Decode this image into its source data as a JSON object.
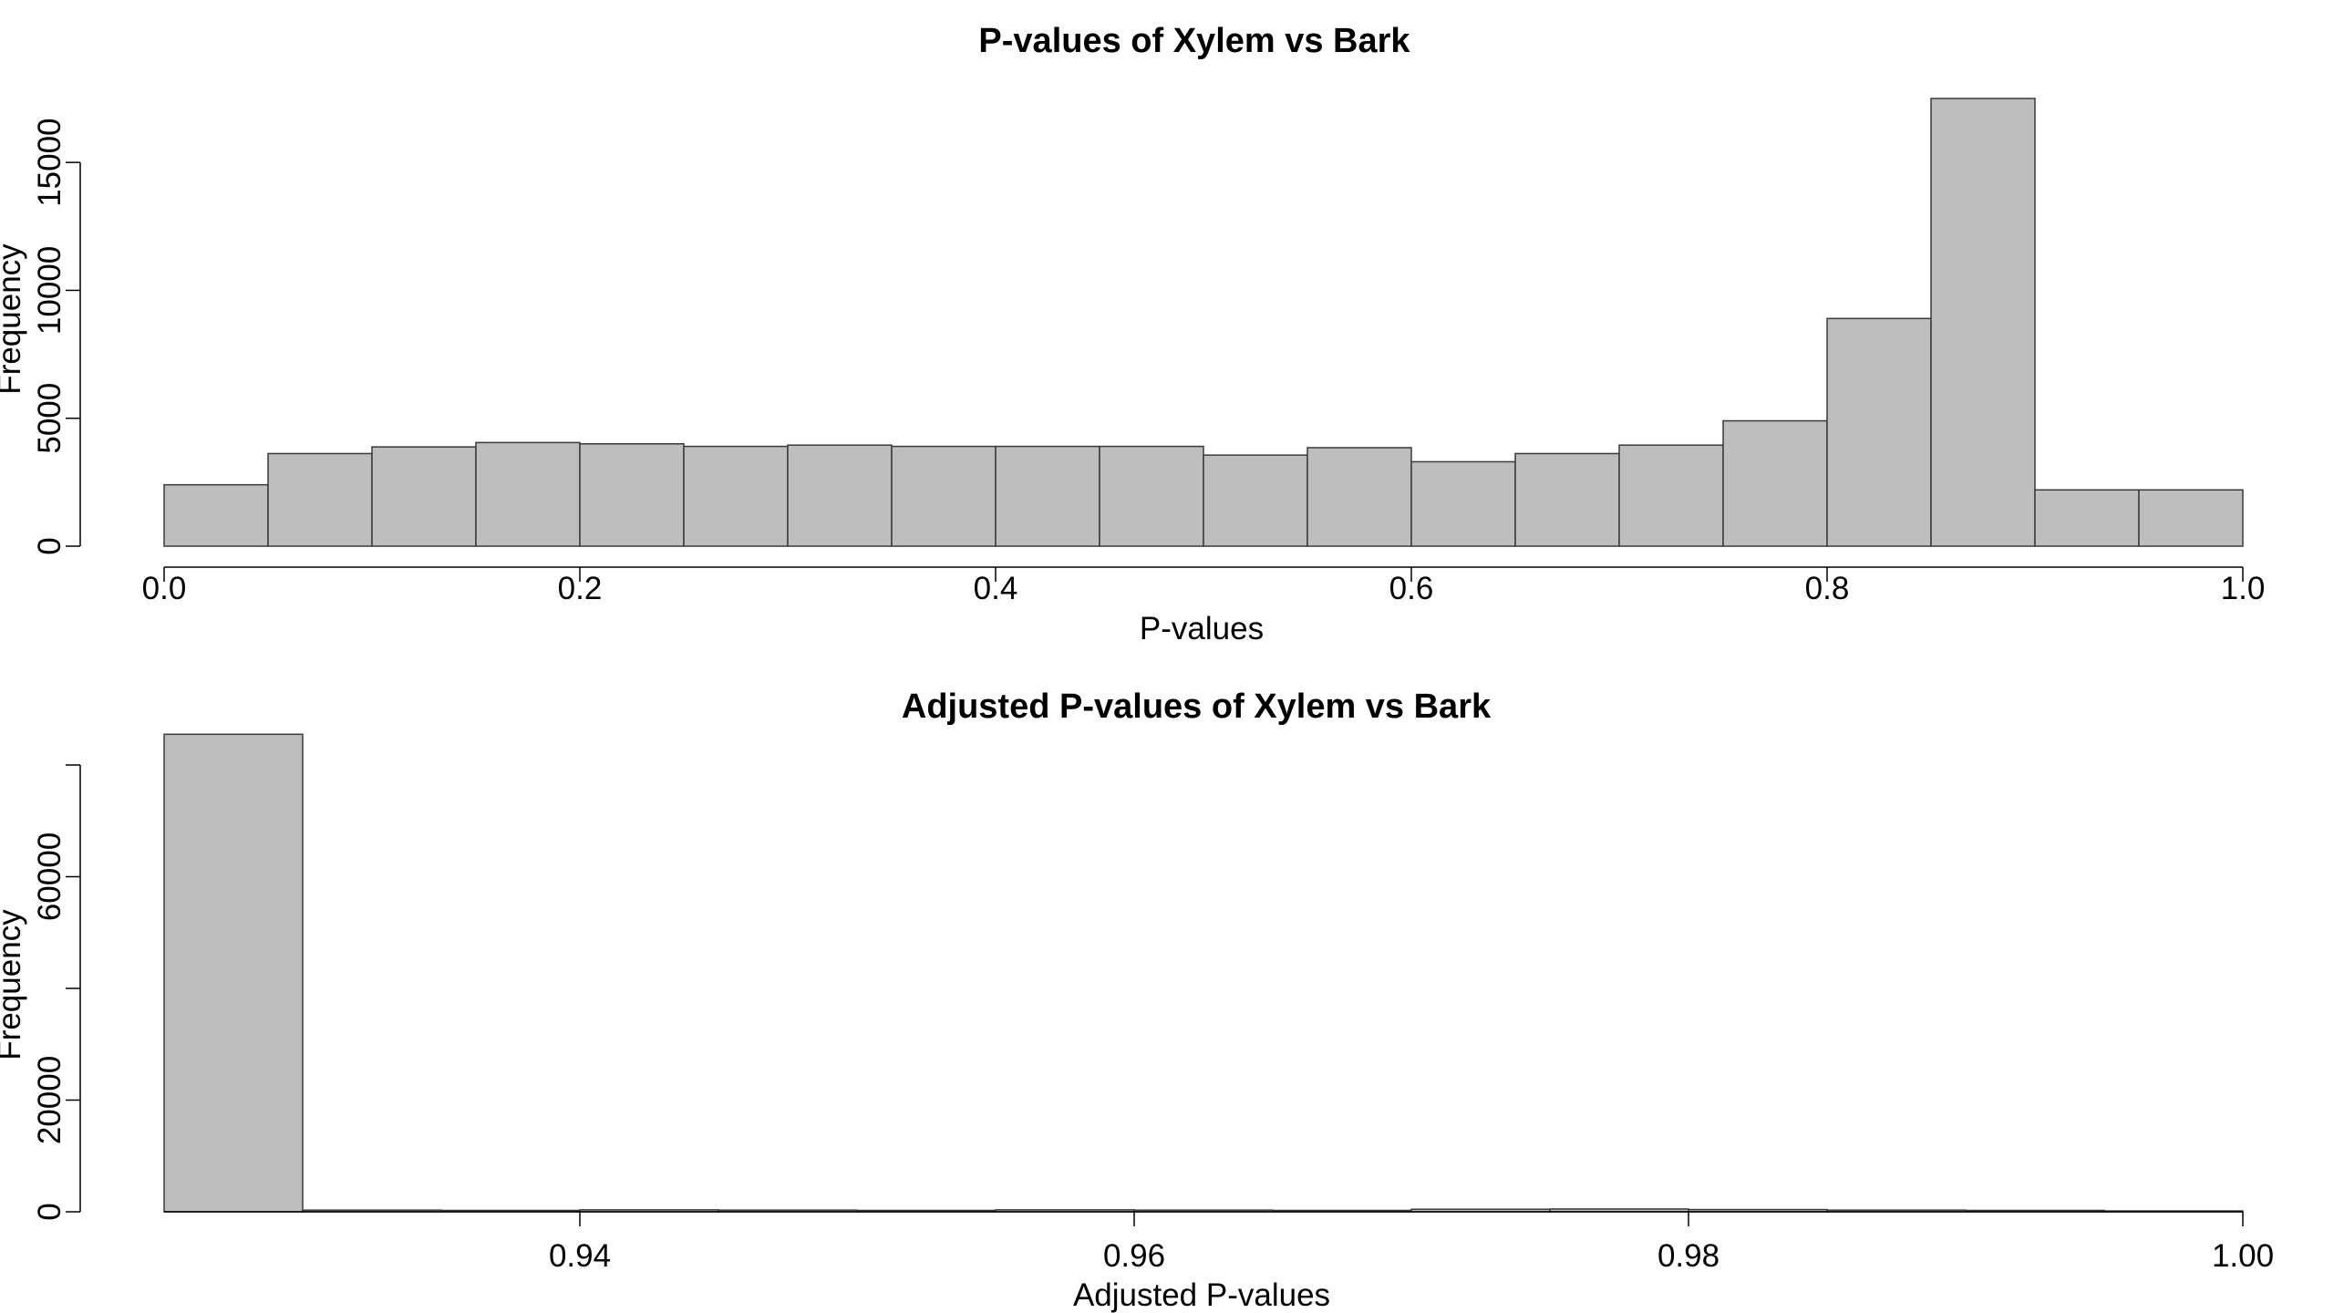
{
  "chart_data": [
    {
      "type": "bar",
      "title": "P-values of Xylem vs Bark",
      "xlabel": "P-values",
      "ylabel": "Frequency",
      "xlim": [
        0.0,
        1.0
      ],
      "ylim": [
        0,
        17500
      ],
      "grid": false,
      "bin_edges": [
        0.0,
        0.05,
        0.1,
        0.15,
        0.2,
        0.25,
        0.3,
        0.35,
        0.4,
        0.45,
        0.5,
        0.55,
        0.6,
        0.65,
        0.7,
        0.75,
        0.8,
        0.85,
        0.9,
        0.95,
        1.0
      ],
      "values": [
        2400,
        3620,
        3880,
        4050,
        4000,
        3900,
        3950,
        3900,
        3900,
        3900,
        3560,
        3850,
        3300,
        3620,
        3950,
        4900,
        8900,
        17500,
        2200,
        2200
      ],
      "x_ticks": [
        0.0,
        0.2,
        0.4,
        0.6,
        0.8,
        1.0
      ],
      "x_tick_labels": [
        "0.0",
        "0.2",
        "0.4",
        "0.6",
        "0.8",
        "1.0"
      ],
      "y_ticks": [
        0,
        5000,
        10000,
        15000
      ],
      "y_tick_labels": [
        "0",
        "5000",
        "10000",
        "15000"
      ]
    },
    {
      "type": "bar",
      "title": "Adjusted P-values of Xylem vs Bark",
      "xlabel": "Adjusted P-values",
      "ylabel": "Frequency",
      "xlim": [
        0.925,
        1.0
      ],
      "ylim": [
        0,
        80000
      ],
      "grid": false,
      "bin_edges": [
        0.925,
        0.93,
        0.935,
        0.94,
        0.945,
        0.95,
        0.955,
        0.96,
        0.965,
        0.97,
        0.975,
        0.98,
        0.985,
        0.99,
        0.995,
        1.0
      ],
      "values": [
        85500,
        300,
        250,
        350,
        300,
        250,
        350,
        300,
        250,
        450,
        500,
        400,
        300,
        250,
        150
      ],
      "x_ticks": [
        0.94,
        0.96,
        0.98,
        1.0
      ],
      "x_tick_labels": [
        "0.94",
        "0.96",
        "0.98",
        "1.00"
      ],
      "y_ticks": [
        0,
        20000,
        60000
      ],
      "y_tick_labels": [
        "0",
        "20000",
        "60000"
      ],
      "y_minor_ticks": [
        40000,
        80000
      ]
    }
  ]
}
